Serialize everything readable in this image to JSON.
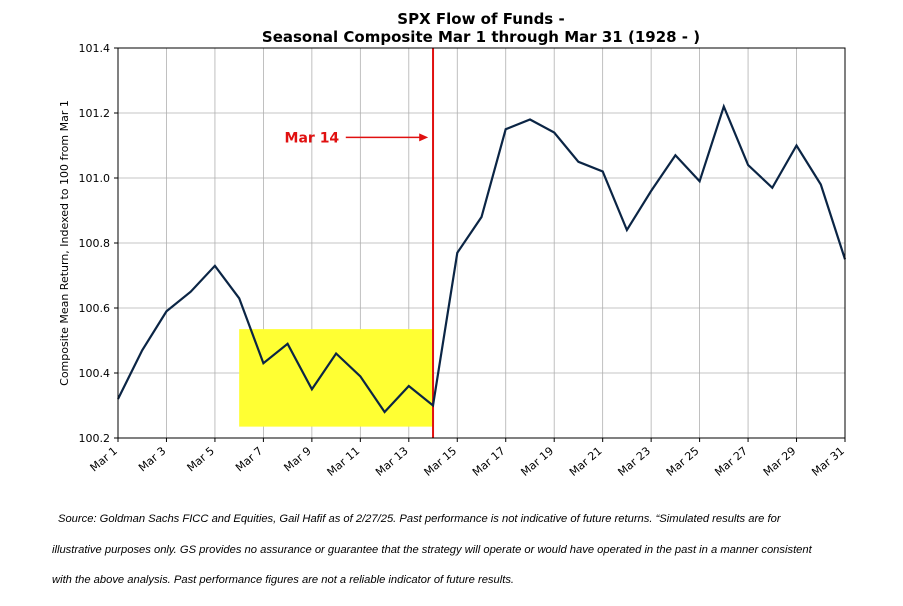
{
  "chart_data": {
    "type": "line",
    "title_lines": [
      "SPX Flow of Funds -",
      "Seasonal Composite Mar 1 through Mar 31 (1928 - )"
    ],
    "xlabel": "",
    "ylabel": "Composite Mean Return, Indexed to 100 from Mar 1",
    "ylim": [
      100.2,
      101.4
    ],
    "yticks": [
      100.2,
      100.4,
      100.6,
      100.8,
      101.0,
      101.2,
      101.4
    ],
    "ytick_labels": [
      "100.2",
      "100.4",
      "100.6",
      "100.8",
      "101.0",
      "101.2",
      "101.4"
    ],
    "xlim": [
      1,
      31
    ],
    "xticks": [
      1,
      3,
      5,
      7,
      9,
      11,
      13,
      15,
      17,
      19,
      21,
      23,
      25,
      27,
      29,
      31
    ],
    "xtick_labels": [
      "Mar 1",
      "Mar 3",
      "Mar 5",
      "Mar 7",
      "Mar 9",
      "Mar 11",
      "Mar 13",
      "Mar 15",
      "Mar 17",
      "Mar 19",
      "Mar 21",
      "Mar 23",
      "Mar 25",
      "Mar 27",
      "Mar 29",
      "Mar 31"
    ],
    "grid": true,
    "series": [
      {
        "color": "#0b2545",
        "x": [
          1,
          2,
          3,
          4,
          5,
          6,
          7,
          8,
          9,
          10,
          11,
          12,
          13,
          14,
          15,
          16,
          17,
          18,
          19,
          20,
          21,
          22,
          23,
          24,
          25,
          26,
          27,
          28,
          29,
          30,
          31
        ],
        "y": [
          100.32,
          100.47,
          100.59,
          100.65,
          100.73,
          100.63,
          100.43,
          100.49,
          100.35,
          100.46,
          100.39,
          100.28,
          100.36,
          100.3,
          100.77,
          100.88,
          101.15,
          101.18,
          101.14,
          101.05,
          101.02,
          100.84,
          100.96,
          101.07,
          100.99,
          101.22,
          101.04,
          100.97,
          101.1,
          100.98,
          100.75
        ]
      }
    ],
    "highlight_band": {
      "x": [
        6,
        14
      ],
      "y": [
        100.235,
        100.535
      ],
      "color": "#ffff33"
    },
    "vertical_line": {
      "x": 14,
      "color": "#e01010"
    },
    "annotation": {
      "text": "Mar 14",
      "color": "#e01010",
      "text_x": 9,
      "arrow_from_x": 10.4,
      "arrow_to_x": 13.8,
      "y": 101.125
    }
  },
  "footnote_lines": [
    "Source: Goldman Sachs FICC and Equities, Gail Hafif as of 2/27/25. Past performance is not indicative of future returns. “Simulated results are for",
    "illustrative purposes only. GS provides no assurance or guarantee that the strategy will operate or would have operated in the past in a manner consistent",
    "with the above analysis. Past performance figures are not a reliable indicator of future results."
  ]
}
